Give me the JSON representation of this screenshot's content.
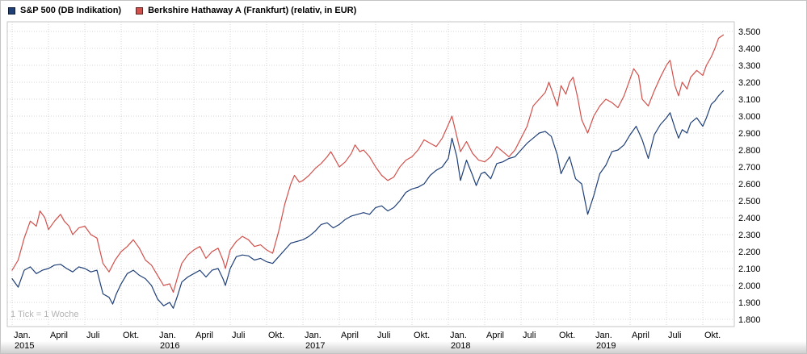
{
  "watermark_note": "1 Tick = 1 Woche",
  "colors": {
    "sp500_line": "#1f3f77",
    "berkshire_line": "#d2504b",
    "grid": "#d6d6d6",
    "axis_text": "#000000",
    "note_text": "#b4b4b4"
  },
  "chart_data": {
    "type": "line",
    "title": "",
    "xlabel": "",
    "ylabel": "",
    "grid": true,
    "legend_position": "top-left",
    "tick_note": "1 Tick = 1 Woche",
    "x_unit": "months_since_2015_01",
    "xlim": [
      0,
      59.6
    ],
    "ylim": [
      1757,
      3548
    ],
    "y_ticks": {
      "values": [
        3500,
        3400,
        3300,
        3200,
        3100,
        3000,
        2900,
        2800,
        2700,
        2600,
        2500,
        2400,
        2300,
        2200,
        2100,
        2000,
        1900,
        1800
      ],
      "labels": [
        "3.500",
        "3.400",
        "3.300",
        "3.200",
        "3.100",
        "3.000",
        "2.900",
        "2.800",
        "2.700",
        "2.600",
        "2.500",
        "2.400",
        "2.300",
        "2.200",
        "2.100",
        "2.000",
        "1.900",
        "1.800"
      ]
    },
    "x_ticks": [
      {
        "t": 0,
        "label": "Jan.",
        "year": "2015"
      },
      {
        "t": 3,
        "label": "April"
      },
      {
        "t": 6,
        "label": "Juli"
      },
      {
        "t": 9,
        "label": "Okt."
      },
      {
        "t": 12,
        "label": "Jan.",
        "year": "2016"
      },
      {
        "t": 15,
        "label": "April"
      },
      {
        "t": 18,
        "label": "Juli"
      },
      {
        "t": 21,
        "label": "Okt."
      },
      {
        "t": 24,
        "label": "Jan.",
        "year": "2017"
      },
      {
        "t": 27,
        "label": "April"
      },
      {
        "t": 30,
        "label": "Juli"
      },
      {
        "t": 33,
        "label": "Okt."
      },
      {
        "t": 36,
        "label": "Jan.",
        "year": "2018"
      },
      {
        "t": 39,
        "label": "April"
      },
      {
        "t": 42,
        "label": "Juli"
      },
      {
        "t": 45,
        "label": "Okt."
      },
      {
        "t": 48,
        "label": "Jan.",
        "year": "2019"
      },
      {
        "t": 51,
        "label": "April"
      },
      {
        "t": 54,
        "label": "Juli"
      },
      {
        "t": 57,
        "label": "Okt."
      }
    ],
    "series": [
      {
        "name": "S&P 500 (DB Indikation)",
        "color": "#1f3f77",
        "points": [
          [
            0,
            2040
          ],
          [
            0.5,
            1990
          ],
          [
            1,
            2090
          ],
          [
            1.5,
            2110
          ],
          [
            2,
            2070
          ],
          [
            2.5,
            2090
          ],
          [
            3,
            2100
          ],
          [
            3.5,
            2120
          ],
          [
            4,
            2125
          ],
          [
            4.5,
            2100
          ],
          [
            5,
            2080
          ],
          [
            5.5,
            2110
          ],
          [
            6,
            2100
          ],
          [
            6.5,
            2080
          ],
          [
            7,
            2090
          ],
          [
            7.5,
            1950
          ],
          [
            8,
            1930
          ],
          [
            8.3,
            1890
          ],
          [
            8.6,
            1950
          ],
          [
            9,
            2010
          ],
          [
            9.5,
            2070
          ],
          [
            10,
            2090
          ],
          [
            10.5,
            2060
          ],
          [
            11,
            2040
          ],
          [
            11.5,
            2000
          ],
          [
            12,
            1920
          ],
          [
            12.5,
            1880
          ],
          [
            13,
            1900
          ],
          [
            13.3,
            1865
          ],
          [
            13.7,
            1950
          ],
          [
            14,
            2020
          ],
          [
            14.5,
            2050
          ],
          [
            15,
            2070
          ],
          [
            15.5,
            2090
          ],
          [
            16,
            2050
          ],
          [
            16.5,
            2090
          ],
          [
            17,
            2100
          ],
          [
            17.4,
            2040
          ],
          [
            17.6,
            2000
          ],
          [
            18,
            2100
          ],
          [
            18.5,
            2170
          ],
          [
            19,
            2180
          ],
          [
            19.5,
            2175
          ],
          [
            20,
            2150
          ],
          [
            20.5,
            2160
          ],
          [
            21,
            2140
          ],
          [
            21.5,
            2130
          ],
          [
            22,
            2170
          ],
          [
            22.5,
            2210
          ],
          [
            23,
            2250
          ],
          [
            23.5,
            2260
          ],
          [
            24,
            2270
          ],
          [
            24.5,
            2290
          ],
          [
            25,
            2320
          ],
          [
            25.5,
            2360
          ],
          [
            26,
            2370
          ],
          [
            26.5,
            2340
          ],
          [
            27,
            2360
          ],
          [
            27.5,
            2390
          ],
          [
            28,
            2410
          ],
          [
            28.5,
            2420
          ],
          [
            29,
            2430
          ],
          [
            29.5,
            2420
          ],
          [
            30,
            2460
          ],
          [
            30.5,
            2470
          ],
          [
            31,
            2440
          ],
          [
            31.5,
            2460
          ],
          [
            32,
            2500
          ],
          [
            32.5,
            2550
          ],
          [
            33,
            2570
          ],
          [
            33.5,
            2580
          ],
          [
            34,
            2600
          ],
          [
            34.5,
            2650
          ],
          [
            35,
            2680
          ],
          [
            35.5,
            2700
          ],
          [
            36,
            2750
          ],
          [
            36.3,
            2870
          ],
          [
            36.7,
            2760
          ],
          [
            37,
            2620
          ],
          [
            37.5,
            2740
          ],
          [
            38,
            2650
          ],
          [
            38.3,
            2590
          ],
          [
            38.7,
            2660
          ],
          [
            39,
            2670
          ],
          [
            39.5,
            2630
          ],
          [
            40,
            2720
          ],
          [
            40.5,
            2730
          ],
          [
            41,
            2750
          ],
          [
            41.5,
            2760
          ],
          [
            42,
            2800
          ],
          [
            42.5,
            2840
          ],
          [
            43,
            2870
          ],
          [
            43.5,
            2900
          ],
          [
            44,
            2910
          ],
          [
            44.5,
            2880
          ],
          [
            45,
            2770
          ],
          [
            45.3,
            2660
          ],
          [
            45.7,
            2720
          ],
          [
            46,
            2760
          ],
          [
            46.5,
            2630
          ],
          [
            47,
            2600
          ],
          [
            47.5,
            2420
          ],
          [
            48,
            2530
          ],
          [
            48.5,
            2660
          ],
          [
            49,
            2710
          ],
          [
            49.5,
            2790
          ],
          [
            50,
            2800
          ],
          [
            50.5,
            2830
          ],
          [
            51,
            2890
          ],
          [
            51.5,
            2940
          ],
          [
            52,
            2860
          ],
          [
            52.5,
            2750
          ],
          [
            53,
            2890
          ],
          [
            53.5,
            2950
          ],
          [
            54,
            2990
          ],
          [
            54.3,
            3020
          ],
          [
            54.7,
            2930
          ],
          [
            55,
            2870
          ],
          [
            55.3,
            2920
          ],
          [
            55.7,
            2900
          ],
          [
            56,
            2960
          ],
          [
            56.5,
            2990
          ],
          [
            57,
            2940
          ],
          [
            57.3,
            2990
          ],
          [
            57.7,
            3070
          ],
          [
            58,
            3090
          ],
          [
            58.3,
            3120
          ],
          [
            58.7,
            3150
          ]
        ]
      },
      {
        "name": "Berkshire Hathaway A (Frankfurt) (relativ, in EUR)",
        "color": "#d2504b",
        "points": [
          [
            0,
            2090
          ],
          [
            0.5,
            2150
          ],
          [
            1,
            2280
          ],
          [
            1.5,
            2380
          ],
          [
            2,
            2350
          ],
          [
            2.3,
            2440
          ],
          [
            2.7,
            2400
          ],
          [
            3,
            2330
          ],
          [
            3.5,
            2380
          ],
          [
            4,
            2420
          ],
          [
            4.3,
            2380
          ],
          [
            4.7,
            2350
          ],
          [
            5,
            2300
          ],
          [
            5.5,
            2340
          ],
          [
            6,
            2350
          ],
          [
            6.5,
            2300
          ],
          [
            7,
            2280
          ],
          [
            7.5,
            2130
          ],
          [
            8,
            2080
          ],
          [
            8.5,
            2150
          ],
          [
            9,
            2200
          ],
          [
            9.5,
            2230
          ],
          [
            10,
            2270
          ],
          [
            10.5,
            2220
          ],
          [
            11,
            2150
          ],
          [
            11.5,
            2120
          ],
          [
            12,
            2060
          ],
          [
            12.5,
            2000
          ],
          [
            13,
            2010
          ],
          [
            13.3,
            1960
          ],
          [
            13.7,
            2060
          ],
          [
            14,
            2130
          ],
          [
            14.5,
            2180
          ],
          [
            15,
            2210
          ],
          [
            15.5,
            2230
          ],
          [
            16,
            2160
          ],
          [
            16.5,
            2200
          ],
          [
            17,
            2220
          ],
          [
            17.4,
            2150
          ],
          [
            17.6,
            2100
          ],
          [
            18,
            2210
          ],
          [
            18.5,
            2260
          ],
          [
            19,
            2290
          ],
          [
            19.5,
            2270
          ],
          [
            20,
            2230
          ],
          [
            20.5,
            2240
          ],
          [
            21,
            2210
          ],
          [
            21.5,
            2190
          ],
          [
            22,
            2320
          ],
          [
            22.5,
            2480
          ],
          [
            23,
            2600
          ],
          [
            23.3,
            2650
          ],
          [
            23.7,
            2610
          ],
          [
            24,
            2620
          ],
          [
            24.5,
            2650
          ],
          [
            25,
            2690
          ],
          [
            25.5,
            2720
          ],
          [
            26,
            2760
          ],
          [
            26.3,
            2790
          ],
          [
            26.7,
            2740
          ],
          [
            27,
            2700
          ],
          [
            27.5,
            2730
          ],
          [
            28,
            2780
          ],
          [
            28.3,
            2830
          ],
          [
            28.7,
            2790
          ],
          [
            29,
            2800
          ],
          [
            29.5,
            2760
          ],
          [
            30,
            2700
          ],
          [
            30.5,
            2650
          ],
          [
            31,
            2620
          ],
          [
            31.5,
            2640
          ],
          [
            32,
            2700
          ],
          [
            32.5,
            2740
          ],
          [
            33,
            2760
          ],
          [
            33.5,
            2800
          ],
          [
            34,
            2860
          ],
          [
            34.5,
            2840
          ],
          [
            35,
            2820
          ],
          [
            35.5,
            2870
          ],
          [
            36,
            2950
          ],
          [
            36.3,
            3000
          ],
          [
            36.7,
            2880
          ],
          [
            37,
            2790
          ],
          [
            37.5,
            2850
          ],
          [
            38,
            2780
          ],
          [
            38.5,
            2740
          ],
          [
            39,
            2730
          ],
          [
            39.5,
            2760
          ],
          [
            40,
            2820
          ],
          [
            40.5,
            2790
          ],
          [
            41,
            2760
          ],
          [
            41.5,
            2800
          ],
          [
            42,
            2870
          ],
          [
            42.5,
            2940
          ],
          [
            43,
            3060
          ],
          [
            43.5,
            3100
          ],
          [
            44,
            3140
          ],
          [
            44.3,
            3200
          ],
          [
            44.7,
            3120
          ],
          [
            45,
            3060
          ],
          [
            45.3,
            3180
          ],
          [
            45.7,
            3130
          ],
          [
            46,
            3200
          ],
          [
            46.3,
            3230
          ],
          [
            46.7,
            3100
          ],
          [
            47,
            2980
          ],
          [
            47.5,
            2900
          ],
          [
            48,
            3000
          ],
          [
            48.5,
            3060
          ],
          [
            49,
            3100
          ],
          [
            49.5,
            3080
          ],
          [
            50,
            3050
          ],
          [
            50.5,
            3120
          ],
          [
            51,
            3220
          ],
          [
            51.3,
            3280
          ],
          [
            51.7,
            3240
          ],
          [
            52,
            3100
          ],
          [
            52.5,
            3060
          ],
          [
            53,
            3150
          ],
          [
            53.5,
            3230
          ],
          [
            54,
            3300
          ],
          [
            54.3,
            3330
          ],
          [
            54.7,
            3180
          ],
          [
            55,
            3120
          ],
          [
            55.3,
            3200
          ],
          [
            55.7,
            3160
          ],
          [
            56,
            3230
          ],
          [
            56.5,
            3270
          ],
          [
            57,
            3240
          ],
          [
            57.3,
            3300
          ],
          [
            57.7,
            3350
          ],
          [
            58,
            3400
          ],
          [
            58.3,
            3460
          ],
          [
            58.7,
            3480
          ]
        ]
      }
    ]
  }
}
